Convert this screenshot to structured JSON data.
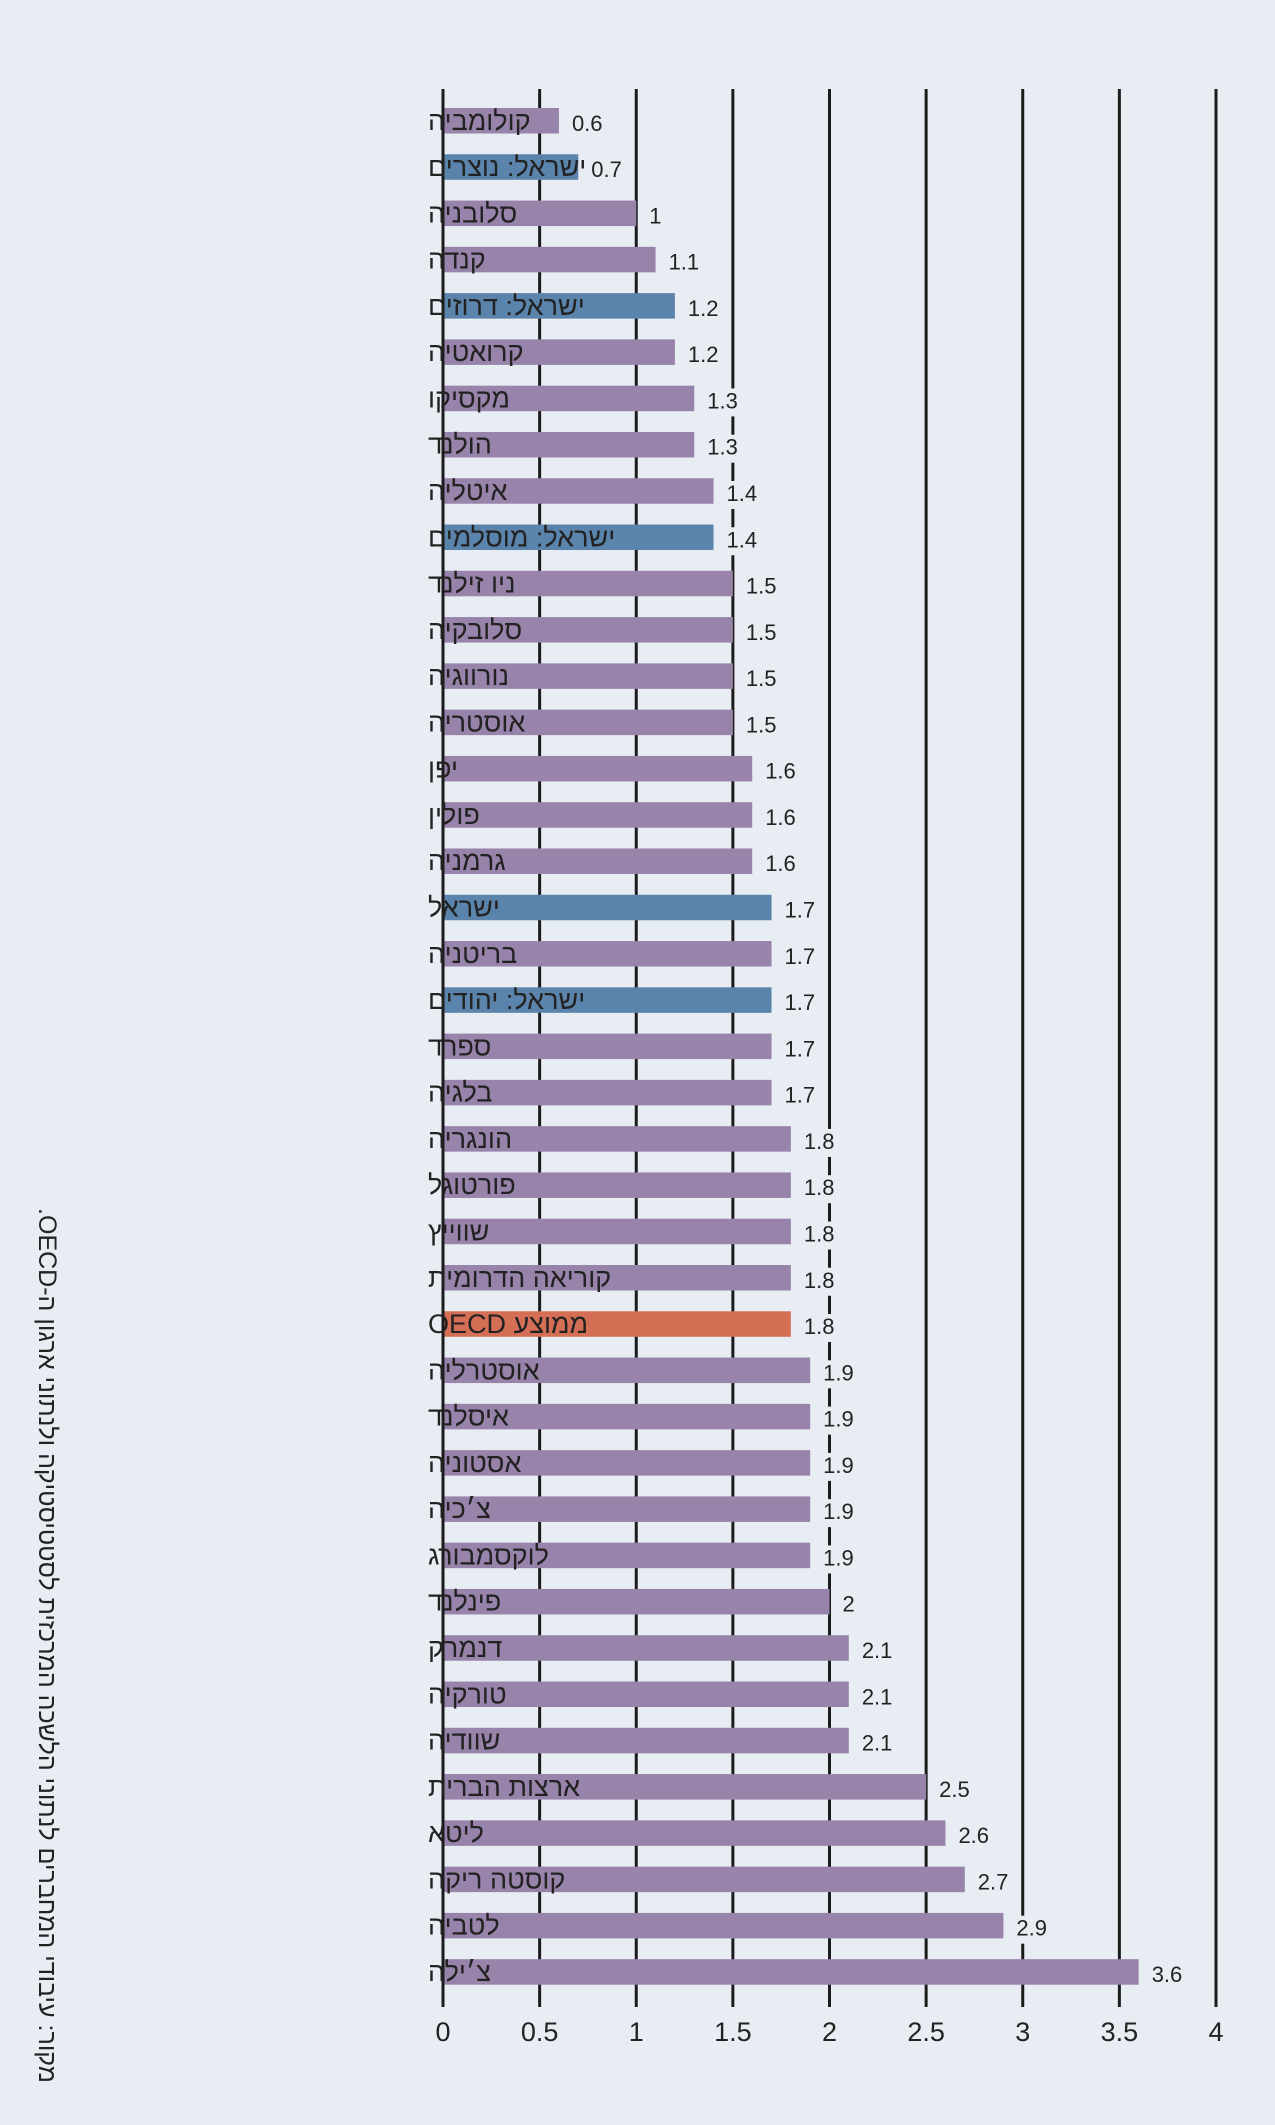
{
  "colors": {
    "default": "#9883aa",
    "israel": "#5a84ab",
    "oecd": "#d46f55",
    "background": "#e8ecf3",
    "grid": "#1c1c1c"
  },
  "source_note": "מקור: עיבודי המחברים לנתוני הלשכה המרכזית לסטטיסטיקה ולנתוני ארגון ה-OECD.",
  "chart_data": {
    "type": "bar",
    "orientation": "horizontal",
    "title": "",
    "xlabel": "",
    "ylabel": "",
    "xlim": [
      0,
      4
    ],
    "xticks": [
      0,
      0.5,
      1,
      1.5,
      2,
      2.5,
      3,
      3.5,
      4
    ],
    "xtick_labels": [
      "0",
      "0.5",
      "1",
      "1.5",
      "2",
      "2.5",
      "3",
      "3.5",
      "4"
    ],
    "grid": "vertical",
    "legend": "none",
    "categories": [
      "קולומביה",
      "ישראל: נוצרים",
      "סלובניה",
      "קנדה",
      "ישראל: דרוזים",
      "קרואטיה",
      "מקסיקו",
      "הולנד",
      "איטליה",
      "ישראל: מוסלמים",
      "ניו זילנד",
      "סלובקיה",
      "נורווגיה",
      "אוסטריה",
      "יפן",
      "פולין",
      "גרמניה",
      "ישראל",
      "בריטניה",
      "ישראל: יהודים",
      "ספרד",
      "בלגיה",
      "הונגריה",
      "פורטוגל",
      "שווייץ",
      "קוריאה הדרומית",
      "ממוצע OECD",
      "אוסטרליה",
      "איסלנד",
      "אסטוניה",
      "צ׳כיה",
      "לוקסמבורג",
      "פינלנד",
      "דנמרק",
      "טורקיה",
      "שוודיה",
      "ארצות הברית",
      "ליטא",
      "קוסטה ריקה",
      "לטביה",
      "צ׳ילה"
    ],
    "values": [
      0.6,
      0.7,
      1,
      1.1,
      1.2,
      1.2,
      1.3,
      1.3,
      1.4,
      1.4,
      1.5,
      1.5,
      1.5,
      1.5,
      1.6,
      1.6,
      1.6,
      1.7,
      1.7,
      1.7,
      1.7,
      1.7,
      1.8,
      1.8,
      1.8,
      1.8,
      1.8,
      1.9,
      1.9,
      1.9,
      1.9,
      1.9,
      2,
      2.1,
      2.1,
      2.1,
      2.5,
      2.6,
      2.7,
      2.9,
      3.6
    ],
    "value_labels": [
      "0.6",
      "0.7",
      "1",
      "1.1",
      "1.2",
      "1.2",
      "1.3",
      "1.3",
      "1.4",
      "1.4",
      "1.5",
      "1.5",
      "1.5",
      "1.5",
      "1.6",
      "1.6",
      "1.6",
      "1.7",
      "1.7",
      "1.7",
      "1.7",
      "1.7",
      "1.8",
      "1.8",
      "1.8",
      "1.8",
      "1.8",
      "1.9",
      "1.9",
      "1.9",
      "1.9",
      "1.9",
      "2",
      "2.1",
      "2.1",
      "2.1",
      "2.5",
      "2.6",
      "2.7",
      "2.9",
      "3.6"
    ],
    "groups": [
      "default",
      "israel",
      "default",
      "default",
      "israel",
      "default",
      "default",
      "default",
      "default",
      "israel",
      "default",
      "default",
      "default",
      "default",
      "default",
      "default",
      "default",
      "israel",
      "default",
      "israel",
      "default",
      "default",
      "default",
      "default",
      "default",
      "default",
      "oecd",
      "default",
      "default",
      "default",
      "default",
      "default",
      "default",
      "default",
      "default",
      "default",
      "default",
      "default",
      "default",
      "default",
      "default"
    ]
  }
}
